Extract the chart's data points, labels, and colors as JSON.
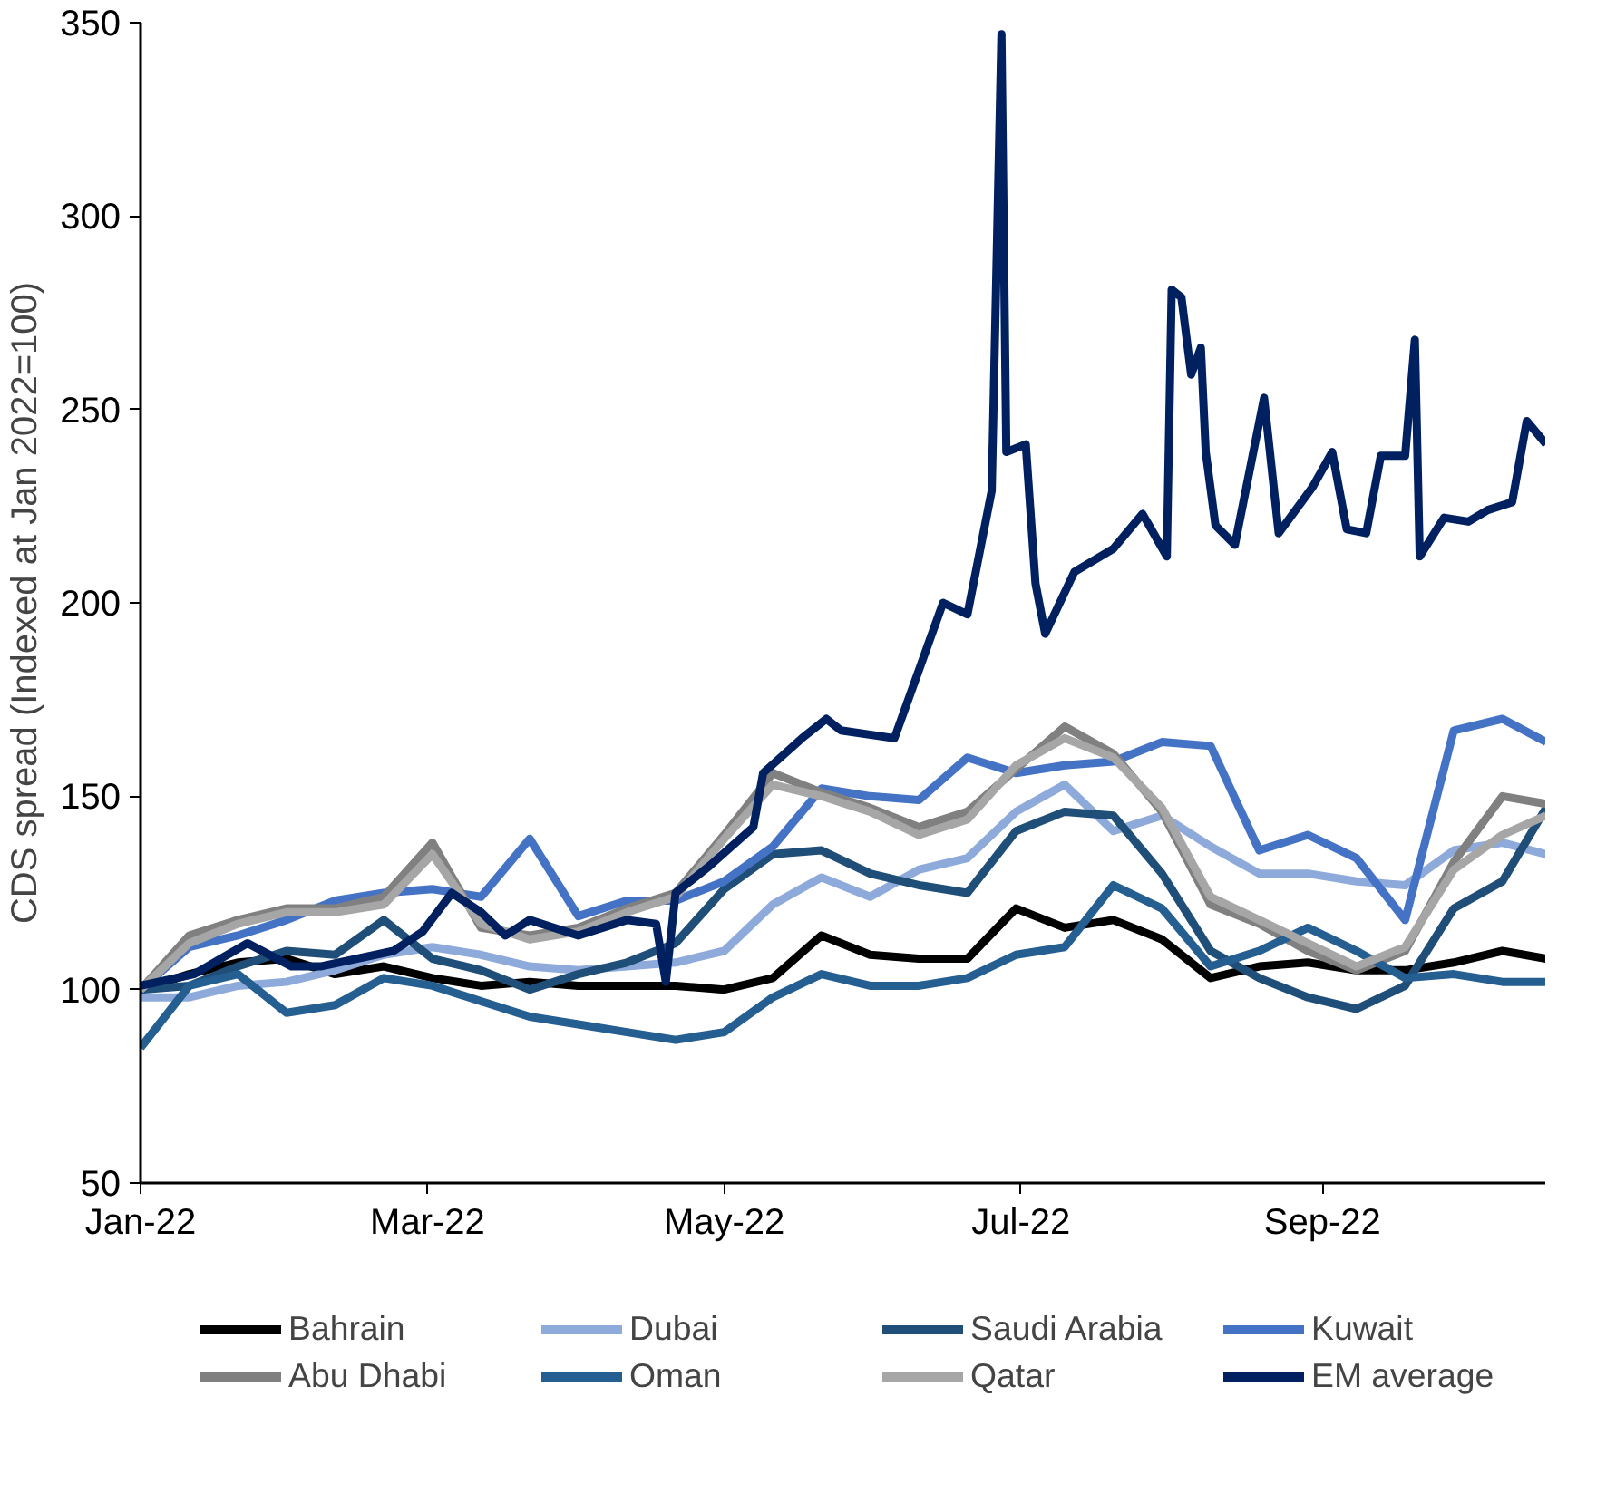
{
  "chart_data": {
    "type": "line",
    "ylabel": "CDS spread (Indexed at Jan 2022=100)",
    "x": [
      "2022-01-01",
      "2022-01-11",
      "2022-01-21",
      "2022-01-31",
      "2022-02-10",
      "2022-02-20",
      "2022-03-02",
      "2022-03-12",
      "2022-03-22",
      "2022-04-01",
      "2022-04-11",
      "2022-04-21",
      "2022-05-01",
      "2022-05-11",
      "2022-05-21",
      "2022-05-31",
      "2022-06-10",
      "2022-06-20",
      "2022-06-30",
      "2022-07-10",
      "2022-07-20",
      "2022-07-30",
      "2022-08-09",
      "2022-08-19",
      "2022-08-29",
      "2022-09-08",
      "2022-09-18",
      "2022-09-28",
      "2022-10-08",
      "2022-10-17"
    ],
    "series": [
      {
        "name": "Bahrain",
        "color": "#000000",
        "values": [
          100,
          104,
          107,
          108,
          104,
          106,
          103,
          101,
          102,
          101,
          101,
          101,
          100,
          103,
          114,
          109,
          108,
          108,
          121,
          116,
          118,
          113,
          103,
          106,
          107,
          105,
          105,
          107,
          110,
          108
        ]
      },
      {
        "name": "Dubai",
        "color": "#8eaadb",
        "values": [
          98,
          98,
          101,
          102,
          105,
          109,
          111,
          109,
          106,
          105,
          106,
          107,
          110,
          122,
          129,
          124,
          131,
          134,
          146,
          153,
          141,
          145,
          137,
          130,
          130,
          128,
          127,
          136,
          138,
          135
        ]
      },
      {
        "name": "Saudi Arabia",
        "color": "#1f4e79",
        "values": [
          100,
          101,
          106,
          110,
          109,
          118,
          108,
          105,
          100,
          104,
          107,
          112,
          126,
          135,
          136,
          130,
          127,
          125,
          141,
          146,
          145,
          130,
          110,
          103,
          98,
          95,
          101,
          121,
          128,
          147
        ]
      },
      {
        "name": "Kuwait",
        "color": "#4472c4",
        "values": [
          100,
          111,
          114,
          118,
          123,
          125,
          126,
          124,
          139,
          119,
          123,
          123,
          128,
          137,
          152,
          150,
          149,
          160,
          156,
          158,
          159,
          164,
          163,
          136,
          140,
          134,
          118,
          167,
          170,
          164
        ]
      },
      {
        "name": "Abu Dhabi",
        "color": "#808080",
        "values": [
          100,
          114,
          118,
          121,
          121,
          124,
          138,
          116,
          114,
          116,
          121,
          125,
          140,
          156,
          151,
          147,
          142,
          146,
          157,
          168,
          161,
          146,
          122,
          117,
          110,
          105,
          110,
          133,
          150,
          148
        ]
      },
      {
        "name": "Oman",
        "color": "#255e91",
        "values": [
          85,
          101,
          104,
          94,
          96,
          103,
          101,
          97,
          93,
          91,
          89,
          87,
          89,
          98,
          104,
          101,
          101,
          103,
          109,
          111,
          127,
          121,
          106,
          110,
          116,
          110,
          103,
          104,
          102,
          102
        ]
      },
      {
        "name": "Qatar",
        "color": "#a6a6a6",
        "values": [
          100,
          112,
          117,
          120,
          120,
          122,
          135,
          117,
          113,
          115,
          120,
          124,
          139,
          153,
          150,
          146,
          140,
          144,
          158,
          165,
          160,
          147,
          124,
          118,
          112,
          106,
          111,
          131,
          140,
          145
        ]
      },
      {
        "name": "EM average",
        "color": "#002060",
        "x": [
          "2022-01-01",
          "2022-01-12",
          "2022-01-23",
          "2022-02-01",
          "2022-02-07",
          "2022-02-22",
          "2022-02-28",
          "2022-03-06",
          "2022-03-12",
          "2022-03-17",
          "2022-03-22",
          "2022-04-01",
          "2022-04-11",
          "2022-04-17",
          "2022-04-19",
          "2022-04-21",
          "2022-04-28",
          "2022-05-07",
          "2022-05-09",
          "2022-05-17",
          "2022-05-22",
          "2022-05-25",
          "2022-06-05",
          "2022-06-11",
          "2022-06-15",
          "2022-06-20",
          "2022-06-25",
          "2022-06-27",
          "2022-06-28",
          "2022-07-02",
          "2022-07-04",
          "2022-07-06",
          "2022-07-12",
          "2022-07-20",
          "2022-07-26",
          "2022-07-31",
          "2022-08-01",
          "2022-08-03",
          "2022-08-05",
          "2022-08-07",
          "2022-08-08",
          "2022-08-10",
          "2022-08-14",
          "2022-08-20",
          "2022-08-23",
          "2022-08-30",
          "2022-09-03",
          "2022-09-06",
          "2022-09-10",
          "2022-09-13",
          "2022-09-18",
          "2022-09-20",
          "2022-09-21",
          "2022-09-26",
          "2022-10-01",
          "2022-10-05",
          "2022-10-10",
          "2022-10-13",
          "2022-10-17"
        ],
        "values": [
          101,
          104,
          112,
          106,
          106,
          110,
          115,
          125,
          120,
          114,
          118,
          114,
          118,
          117,
          102,
          125,
          132,
          142,
          156,
          165,
          170,
          167,
          165,
          186,
          200,
          197,
          229,
          347,
          239,
          241,
          205,
          192,
          208,
          214,
          223,
          212,
          281,
          279,
          259,
          266,
          239,
          220,
          215,
          253,
          218,
          230,
          239,
          219,
          218,
          238,
          238,
          268,
          212,
          222,
          221,
          224,
          226,
          247,
          241
        ]
      }
    ],
    "xlim": [
      "2022-01-01",
      "2022-10-17"
    ],
    "xticks": [
      {
        "value": "2022-01-01",
        "label": "Jan-22"
      },
      {
        "value": "2022-03-01",
        "label": "Mar-22"
      },
      {
        "value": "2022-05-01",
        "label": "May-22"
      },
      {
        "value": "2022-07-01",
        "label": "Jul-22"
      },
      {
        "value": "2022-09-01",
        "label": "Sep-22"
      }
    ],
    "ylim": [
      50,
      350
    ],
    "yticks": [
      50,
      100,
      150,
      200,
      250,
      300,
      350
    ],
    "grid": false,
    "legend": "bottom",
    "line_style": "solid",
    "marker": "none"
  }
}
